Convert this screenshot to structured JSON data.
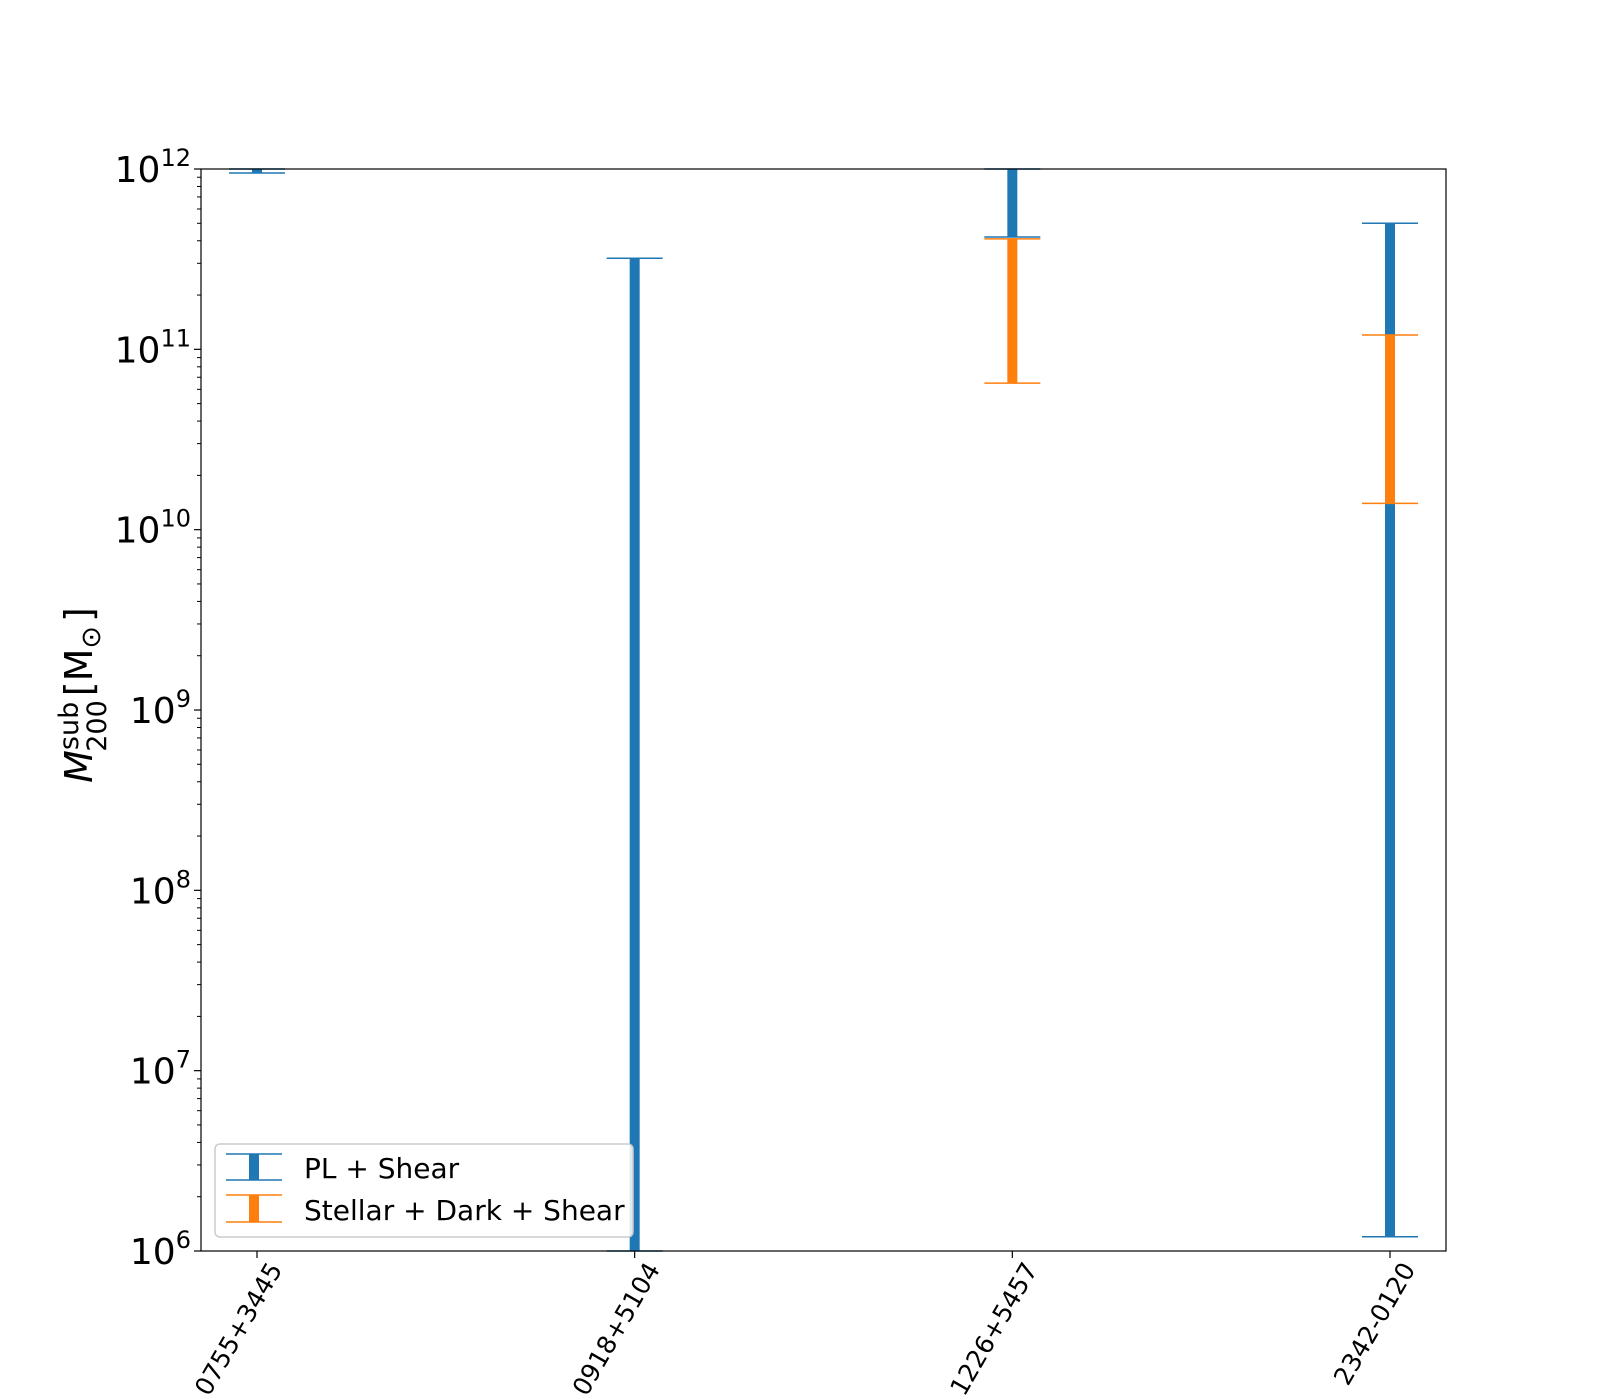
{
  "chart_data": {
    "type": "errorbar",
    "yscale": "log",
    "ylim": [
      1000000,
      1000000000000
    ],
    "y_ticks": [
      {
        "base": "10",
        "exp": "6"
      },
      {
        "base": "10",
        "exp": "7"
      },
      {
        "base": "10",
        "exp": "8"
      },
      {
        "base": "10",
        "exp": "9"
      },
      {
        "base": "10",
        "exp": "10"
      },
      {
        "base": "10",
        "exp": "11"
      },
      {
        "base": "10",
        "exp": "12"
      }
    ],
    "ylabel": {
      "symbol": "M",
      "sup": "sub",
      "sub": "200",
      "unit": "[M",
      "unit_sub": "⊙",
      "unit_close": "]"
    },
    "xlabel": "",
    "categories": [
      "0755+3445",
      "0918+5104",
      "1226+5457",
      "2342-0120"
    ],
    "series": [
      {
        "name": "PL + Shear",
        "color": "#1f77b4",
        "ranges": [
          {
            "category": "0755+3445",
            "low": 950000000000,
            "high": 1000000000000
          },
          {
            "category": "0918+5104",
            "low": 1000000,
            "high": 320000000000
          },
          {
            "category": "1226+5457",
            "low": 420000000000,
            "high": 1000000000000
          },
          {
            "category": "2342-0120",
            "low": 1200000,
            "high": 500000000000
          }
        ]
      },
      {
        "name": "Stellar + Dark + Shear",
        "color": "#ff7f0e",
        "ranges": [
          {
            "category": "1226+5457",
            "low": 65000000000,
            "high": 410000000000
          },
          {
            "category": "2342-0120",
            "low": 14000000000,
            "high": 120000000000
          }
        ]
      }
    ],
    "legend_position": "lower-left",
    "grid": false
  }
}
